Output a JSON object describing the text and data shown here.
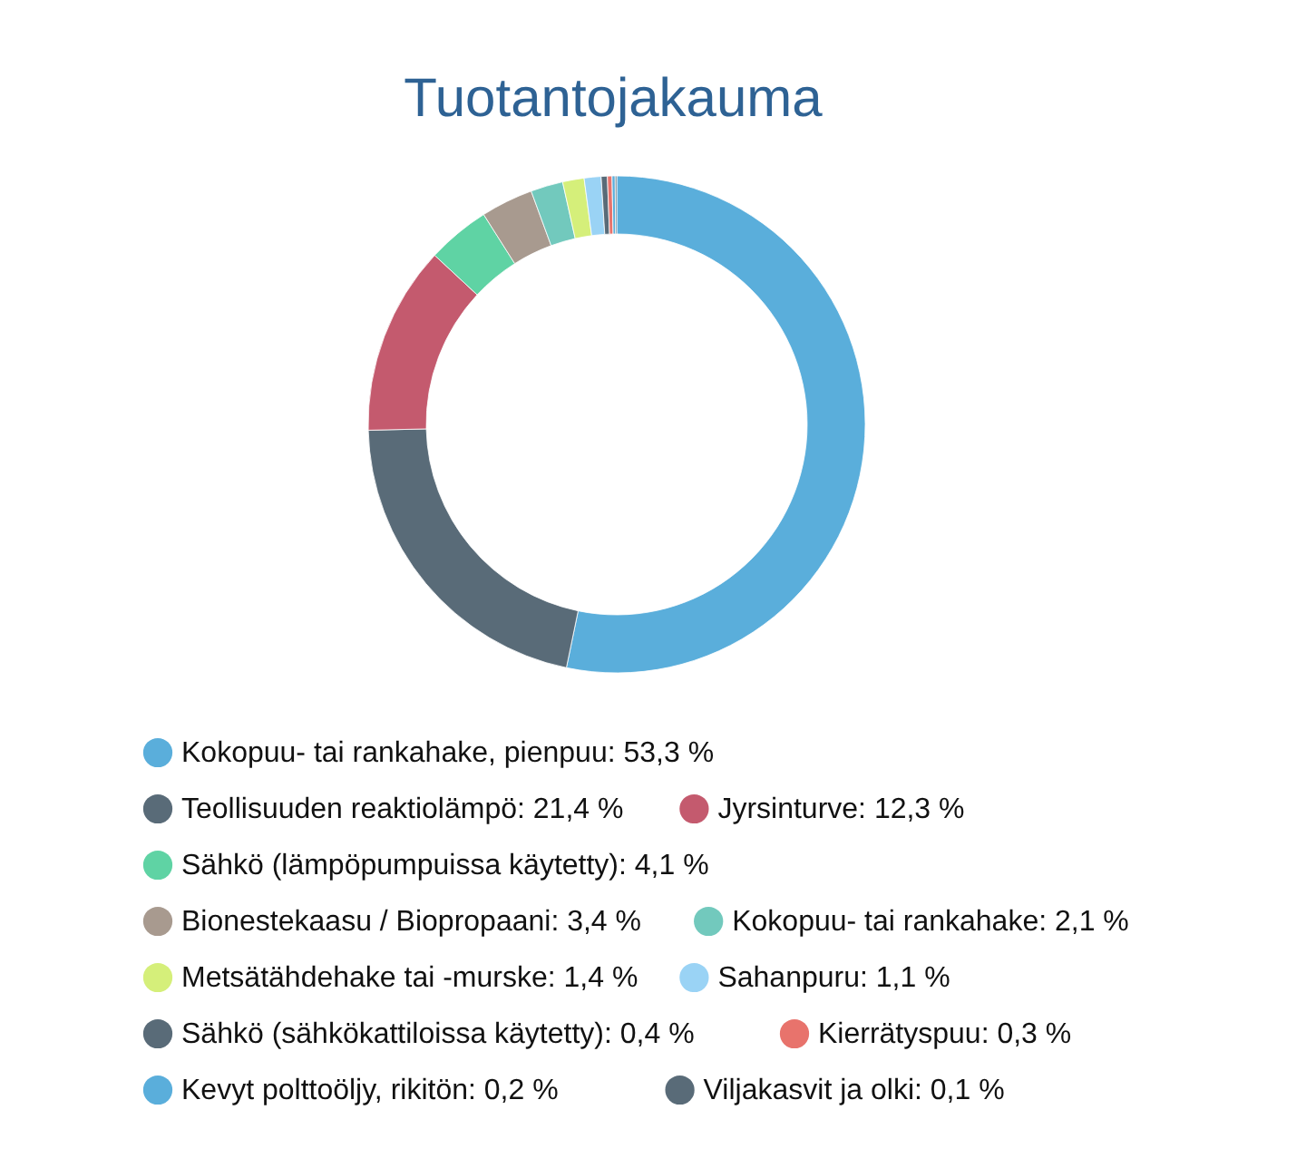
{
  "chart_data": {
    "type": "donut",
    "title": "Tuotantojakauma",
    "legend": "bottom",
    "categories": [
      "Kokopuu- tai rankahake, pienpuu",
      "Teollisuuden reaktiolämpö",
      "Jyrsinturve",
      "Sähkö (lämpöpumpuissa käytetty)",
      "Bionestekaasu / Biopropaani",
      "Kokopuu- tai rankahake",
      "Metsätähdehake tai -murske",
      "Sahanpuru",
      "Sähkö (sähkökattiloissa käytetty)",
      "Kierrätyspuu",
      "Kevyt polttoöljy, rikitön",
      "Viljakasvit ja olki"
    ],
    "values": [
      53.3,
      21.4,
      12.3,
      4.1,
      3.4,
      2.1,
      1.4,
      1.1,
      0.4,
      0.3,
      0.2,
      0.1
    ],
    "value_labels": [
      "53,3 %",
      "21,4 %",
      "12,3 %",
      "4,1 %",
      "3,4 %",
      "2,1 %",
      "1,4 %",
      "1,1 %",
      "0,4 %",
      "0,3 %",
      "0,2 %",
      "0,1 %"
    ],
    "colors": [
      "#5aaedb",
      "#596b78",
      "#c45a6e",
      "#5fd3a4",
      "#a89a8f",
      "#72c9bd",
      "#d5ef7a",
      "#9ad3f5",
      "#596b78",
      "#e8736c",
      "#5aaedb",
      "#596b78"
    ]
  }
}
